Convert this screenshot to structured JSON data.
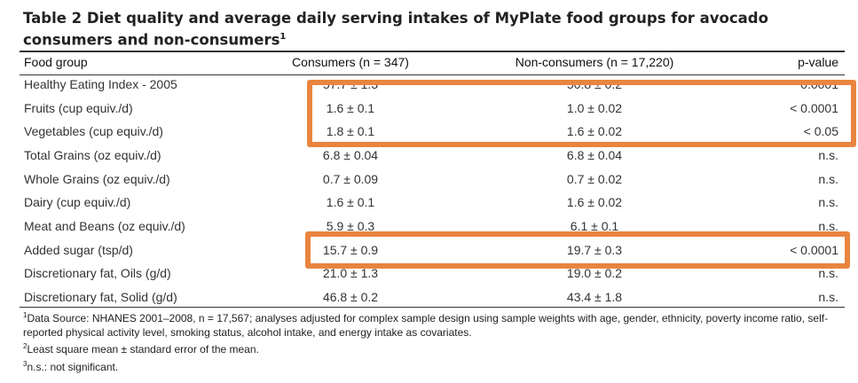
{
  "title": {
    "text": "Table 2 Diet quality and average daily serving intakes of MyPlate food groups for avocado consumers and non-consumers",
    "footnote_mark": "1"
  },
  "columns": [
    "Food group",
    "Consumers (n = 347)",
    "Non-consumers (n = 17,220)",
    "p-value"
  ],
  "rows": [
    {
      "food": "Healthy Eating Index - 2005",
      "consumers": "57.7 ± 1.3",
      "nonconsumers": "50.8 ± 0.2",
      "p": "0.0001"
    },
    {
      "food": "Fruits (cup equiv./d)",
      "consumers": "1.6 ± 0.1",
      "nonconsumers": "1.0 ± 0.02",
      "p": "< 0.0001"
    },
    {
      "food": "Vegetables (cup equiv./d)",
      "consumers": "1.8 ± 0.1",
      "nonconsumers": "1.6 ± 0.02",
      "p": "< 0.05"
    },
    {
      "food": "Total Grains (oz equiv./d)",
      "consumers": "6.8 ± 0.04",
      "nonconsumers": "6.8 ± 0.04",
      "p": "n.s."
    },
    {
      "food": "Whole Grains (oz equiv./d)",
      "consumers": "0.7 ± 0.09",
      "nonconsumers": "0.7 ± 0.02",
      "p": "n.s."
    },
    {
      "food": "Dairy (cup equiv./d)",
      "consumers": "1.6 ± 0.1",
      "nonconsumers": "1.6 ± 0.02",
      "p": "n.s."
    },
    {
      "food": "Meat and Beans (oz equiv./d)",
      "consumers": "5.9 ± 0.3",
      "nonconsumers": "6.1 ± 0.1",
      "p": "n.s."
    },
    {
      "food": "Added sugar (tsp/d)",
      "consumers": "15.7 ± 0.9",
      "nonconsumers": "19.7 ± 0.3",
      "p": "< 0.0001"
    },
    {
      "food": "Discretionary fat, Oils (g/d)",
      "consumers": "21.0 ± 1.3",
      "nonconsumers": "19.0 ± 0.2",
      "p": "n.s."
    },
    {
      "food": "Discretionary fat, Solid (g/d)",
      "consumers": "46.8 ± 0.2",
      "nonconsumers": "43.4 ± 1.8",
      "p": "n.s."
    }
  ],
  "footnotes": [
    {
      "mark": "1",
      "text": "Data Source: NHANES 2001–2008, n = 17,567; analyses adjusted for complex sample design using sample weights with age, gender, ethnicity, poverty income ratio, self-reported physical activity level, smoking status, alcohol intake, and energy intake as covariates."
    },
    {
      "mark": "2",
      "text": "Least square mean ± standard error of the mean."
    },
    {
      "mark": "3",
      "text": "n.s.: not significant."
    }
  ],
  "highlight_color": "#e9853f"
}
